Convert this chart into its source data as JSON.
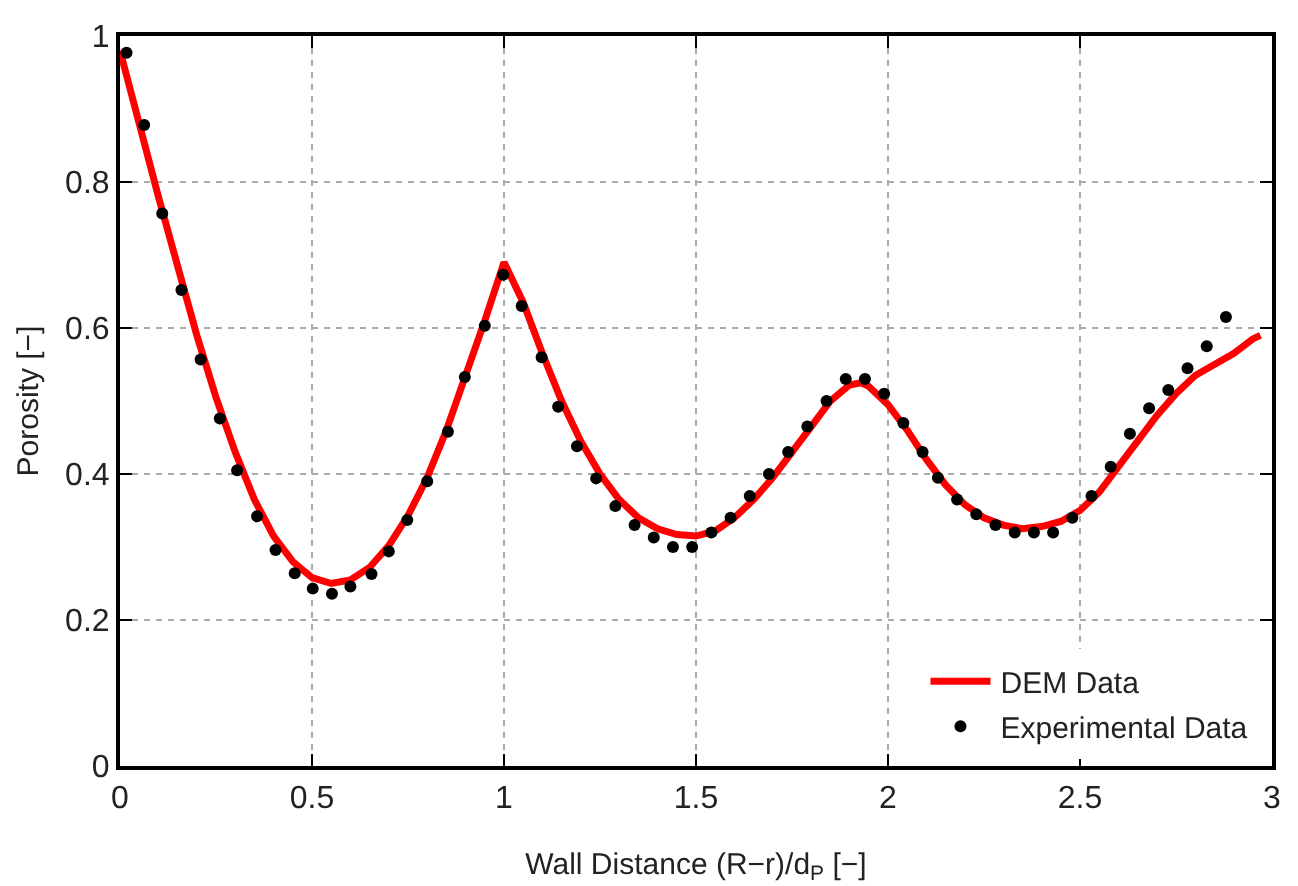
{
  "chart_data": {
    "type": "line",
    "xlabel": "Wall Distance (R−r)/d$_{P}$ [−]",
    "ylabel": "Porosity [−]",
    "xlim": [
      0,
      3
    ],
    "xticks": [
      0,
      0.5,
      1,
      1.5,
      2,
      2.5,
      3
    ],
    "ylim": [
      0,
      1
    ],
    "yticks": [
      0,
      0.2,
      0.4,
      0.6,
      0.8,
      1
    ],
    "grid": true,
    "legend": "bottom right",
    "series": [
      {
        "name": "DEM Data",
        "color": "#ff0000",
        "line_style": "solid",
        "marker": "none",
        "x": [
          0,
          0.05,
          0.1,
          0.15,
          0.2,
          0.25,
          0.3,
          0.35,
          0.4,
          0.45,
          0.5,
          0.55,
          0.6,
          0.65,
          0.7,
          0.75,
          0.8,
          0.85,
          0.9,
          0.95,
          1.0,
          1.05,
          1.1,
          1.15,
          1.2,
          1.25,
          1.3,
          1.35,
          1.4,
          1.45,
          1.5,
          1.55,
          1.6,
          1.65,
          1.7,
          1.75,
          1.8,
          1.85,
          1.9,
          1.93,
          1.95,
          2.0,
          2.05,
          2.1,
          2.15,
          2.2,
          2.25,
          2.3,
          2.35,
          2.4,
          2.45,
          2.5,
          2.55,
          2.6,
          2.65,
          2.7,
          2.75,
          2.8,
          2.85,
          2.9,
          2.95,
          2.97
        ],
        "values": [
          0.98,
          0.88,
          0.78,
          0.685,
          0.59,
          0.505,
          0.43,
          0.365,
          0.315,
          0.28,
          0.258,
          0.25,
          0.255,
          0.272,
          0.302,
          0.343,
          0.395,
          0.46,
          0.535,
          0.61,
          0.69,
          0.635,
          0.565,
          0.5,
          0.445,
          0.4,
          0.365,
          0.34,
          0.325,
          0.317,
          0.315,
          0.322,
          0.34,
          0.365,
          0.395,
          0.43,
          0.465,
          0.5,
          0.522,
          0.525,
          0.52,
          0.495,
          0.46,
          0.42,
          0.385,
          0.358,
          0.34,
          0.33,
          0.325,
          0.328,
          0.335,
          0.35,
          0.375,
          0.41,
          0.445,
          0.48,
          0.51,
          0.535,
          0.55,
          0.565,
          0.585,
          0.59
        ]
      },
      {
        "name": "Experimental Data",
        "type": "scatter",
        "color": "#000000",
        "marker": "circle",
        "x": [
          0.017,
          0.063,
          0.11,
          0.16,
          0.21,
          0.26,
          0.305,
          0.357,
          0.405,
          0.455,
          0.502,
          0.552,
          0.6,
          0.655,
          0.7,
          0.748,
          0.8,
          0.854,
          0.898,
          0.95,
          0.998,
          1.046,
          1.098,
          1.141,
          1.19,
          1.24,
          1.29,
          1.34,
          1.39,
          1.44,
          1.49,
          1.54,
          1.59,
          1.64,
          1.69,
          1.74,
          1.79,
          1.84,
          1.89,
          1.94,
          1.99,
          2.04,
          2.09,
          2.13,
          2.18,
          2.23,
          2.28,
          2.33,
          2.38,
          2.43,
          2.48,
          2.53,
          2.58,
          2.63,
          2.68,
          2.73,
          2.78,
          2.83,
          2.88
        ],
        "values": [
          0.977,
          0.878,
          0.757,
          0.652,
          0.557,
          0.476,
          0.405,
          0.342,
          0.296,
          0.264,
          0.243,
          0.236,
          0.246,
          0.263,
          0.294,
          0.337,
          0.39,
          0.458,
          0.533,
          0.603,
          0.673,
          0.63,
          0.56,
          0.492,
          0.438,
          0.394,
          0.356,
          0.33,
          0.313,
          0.3,
          0.3,
          0.32,
          0.34,
          0.37,
          0.4,
          0.43,
          0.465,
          0.5,
          0.53,
          0.53,
          0.51,
          0.47,
          0.43,
          0.395,
          0.365,
          0.345,
          0.33,
          0.32,
          0.32,
          0.32,
          0.34,
          0.37,
          0.41,
          0.455,
          0.49,
          0.515,
          0.545,
          0.575,
          0.615
        ]
      }
    ]
  }
}
